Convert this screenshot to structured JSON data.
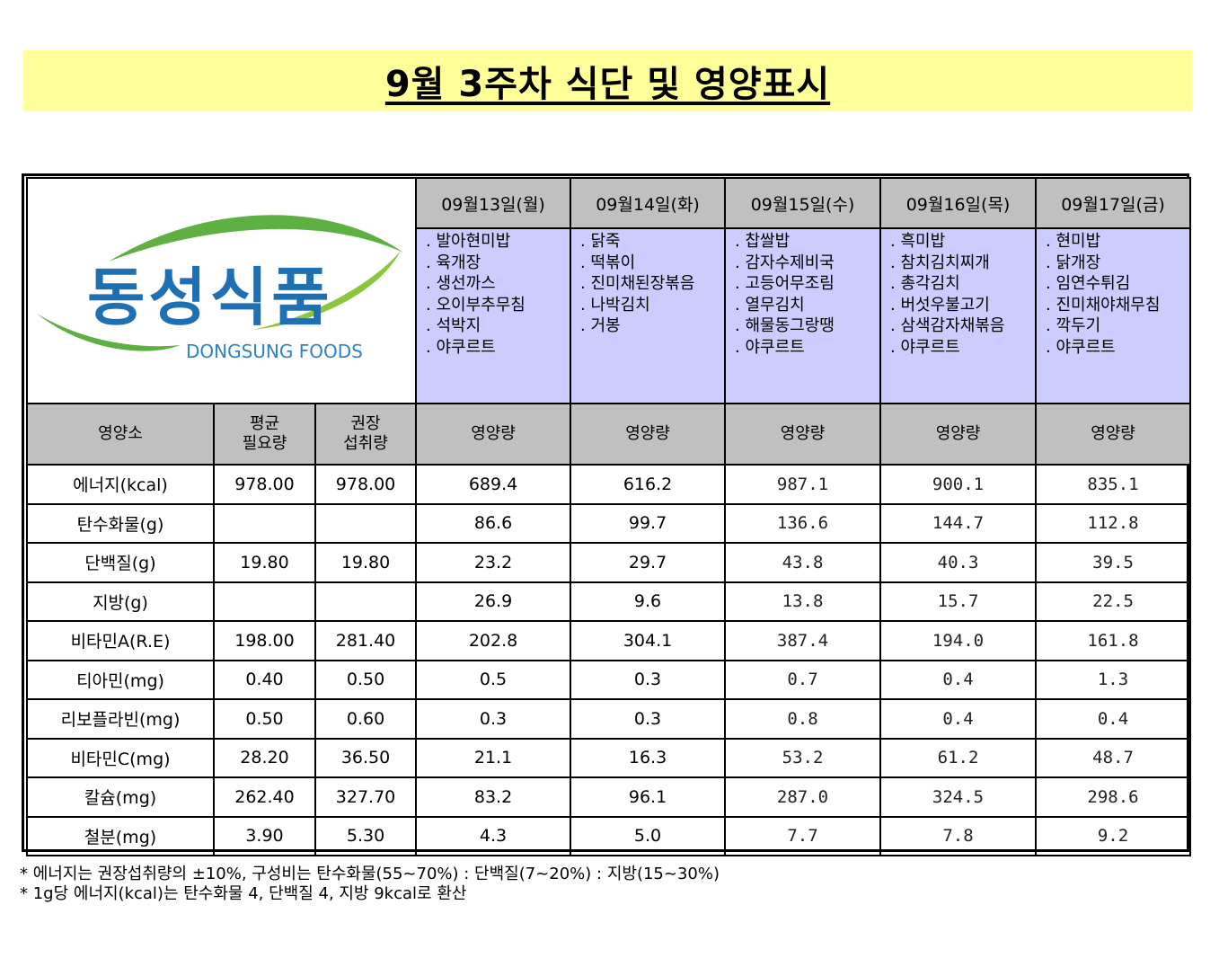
{
  "title": "9월 3주차 식단 및 영양표시",
  "logo": {
    "korean": "동성식품",
    "english": "DONGSUNG FOODS"
  },
  "days": [
    {
      "date": "09월13일(월)",
      "menu": [
        ". 발아현미밥",
        ". 육개장",
        ". 생선까스",
        ". 오이부추무침",
        ". 석박지",
        ". 야쿠르트"
      ]
    },
    {
      "date": "09월14일(화)",
      "menu": [
        ". 닭죽",
        ". 떡볶이",
        ". 진미채된장볶음",
        ". 나박김치",
        ". 거봉"
      ]
    },
    {
      "date": "09월15일(수)",
      "menu": [
        ". 찹쌀밥",
        ". 감자수제비국",
        ". 고등어무조림",
        ". 열무김치",
        ". 해물동그랑땡",
        ". 야쿠르트"
      ]
    },
    {
      "date": "09월16일(목)",
      "menu": [
        ". 흑미밥",
        ". 참치김치찌개",
        ". 총각김치",
        ". 버섯우불고기",
        ". 삼색감자채볶음",
        ". 야쿠르트"
      ]
    },
    {
      "date": "09월17일(금)",
      "menu": [
        ". 현미밥",
        ". 닭개장",
        ". 임연수튀김",
        ". 진미채야채무침",
        ". 깍두기",
        ". 야쿠르트"
      ]
    }
  ],
  "headers": {
    "nutrient": "영양소",
    "avg_need_1": "평균",
    "avg_need_2": "필요량",
    "rec_intake_1": "권장",
    "rec_intake_2": "섭취량",
    "amount": "영양량"
  },
  "nutrients": [
    {
      "name": "에너지(kcal)",
      "avg": "978.00",
      "rec": "978.00",
      "values": [
        "689.4",
        "616.2",
        "987.1",
        "900.1",
        "835.1"
      ]
    },
    {
      "name": "탄수화물(g)",
      "avg": "",
      "rec": "",
      "values": [
        "86.6",
        "99.7",
        "136.6",
        "144.7",
        "112.8"
      ]
    },
    {
      "name": "단백질(g)",
      "avg": "19.80",
      "rec": "19.80",
      "values": [
        "23.2",
        "29.7",
        "43.8",
        "40.3",
        "39.5"
      ]
    },
    {
      "name": "지방(g)",
      "avg": "",
      "rec": "",
      "values": [
        "26.9",
        "9.6",
        "13.8",
        "15.7",
        "22.5"
      ]
    },
    {
      "name": "비타민A(R.E)",
      "avg": "198.00",
      "rec": "281.40",
      "values": [
        "202.8",
        "304.1",
        "387.4",
        "194.0",
        "161.8"
      ]
    },
    {
      "name": "티아민(mg)",
      "avg": "0.40",
      "rec": "0.50",
      "values": [
        "0.5",
        "0.3",
        "0.7",
        "0.4",
        "1.3"
      ]
    },
    {
      "name": "리보플라빈(mg)",
      "avg": "0.50",
      "rec": "0.60",
      "values": [
        "0.3",
        "0.3",
        "0.8",
        "0.4",
        "0.4"
      ]
    },
    {
      "name": "비타민C(mg)",
      "avg": "28.20",
      "rec": "36.50",
      "values": [
        "21.1",
        "16.3",
        "53.2",
        "61.2",
        "48.7"
      ]
    },
    {
      "name": "칼슘(mg)",
      "avg": "262.40",
      "rec": "327.70",
      "values": [
        "83.2",
        "96.1",
        "287.0",
        "324.5",
        "298.6"
      ]
    },
    {
      "name": "철분(mg)",
      "avg": "3.90",
      "rec": "5.30",
      "values": [
        "4.3",
        "5.0",
        "7.7",
        "7.8",
        "9.2"
      ]
    }
  ],
  "notes": [
    "* 에너지는 권장섭취량의 ±10%, 구성비는 탄수화물(55~70%) : 단백질(7~20%) : 지방(15~30%)",
    "* 1g당 에너지(kcal)는 탄수화물 4, 단백질 4, 지방 9kcal로 환산"
  ],
  "colors": {
    "title_bg": "#ffff99",
    "menu_bg": "#ccccff",
    "header_bg": "#c0c0c0",
    "logo_blue": "#1f6fb3",
    "logo_green": "#5fb043"
  }
}
